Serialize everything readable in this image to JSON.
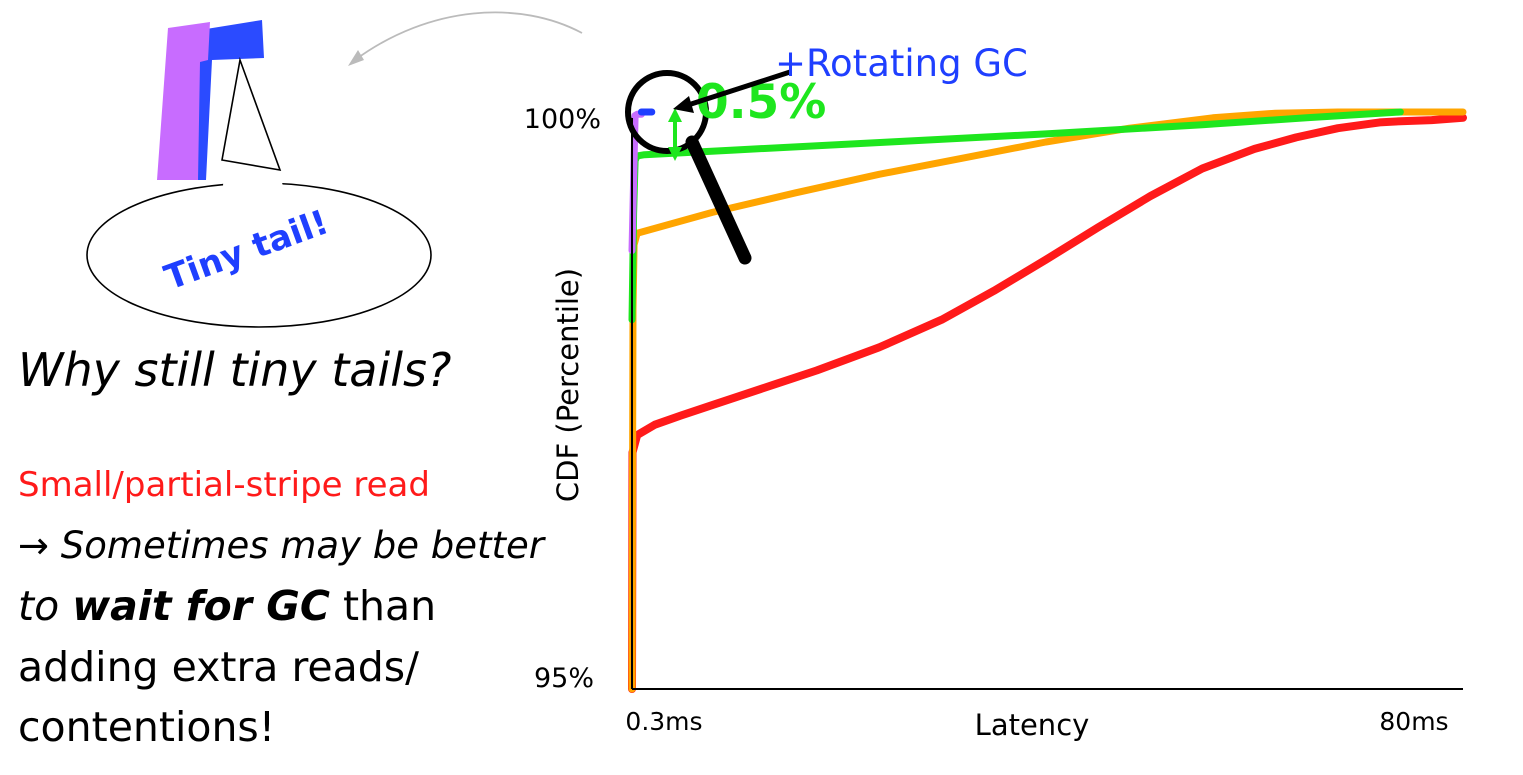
{
  "sidebar": {
    "callout_text": "Tiny tail!",
    "question": "Why still tiny tails?",
    "point_red": "Small/partial-stripe read",
    "arrow_symbol": "→",
    "line1_italic": "Sometimes",
    "line1_rest": "may be better",
    "line2_to": "to",
    "line2_bold": "wait for GC",
    "line2_rest": "than",
    "line3": "adding extra reads/",
    "line4": "contentions!"
  },
  "chart_data": {
    "type": "line",
    "xlabel": "Latency",
    "ylabel": "CDF (Percentile)",
    "x_tick_labels": [
      "0.3ms",
      "80ms"
    ],
    "y_tick_labels": [
      "95%",
      "100%"
    ],
    "x_unit": "ms",
    "y_unit": "percentile",
    "xlim": [
      0.3,
      80
    ],
    "ylim": [
      95,
      100
    ],
    "annotations": {
      "series_label": "+Rotating GC",
      "gap_label": "0.5%"
    },
    "colors": {
      "red": "#ff1a1a",
      "orange": "#ffa500",
      "green": "#1ee61e",
      "purple": "#c86cff",
      "blue": "#1f3fff"
    },
    "series": [
      {
        "color_key": "red",
        "x": [
          0.3,
          0.35,
          0.8,
          2.5,
          5,
          8,
          11,
          14,
          18,
          24,
          30,
          35,
          40,
          45,
          50,
          55,
          60,
          64,
          68,
          72,
          74,
          77,
          80
        ],
        "y": [
          95.0,
          97.05,
          97.2,
          97.29,
          97.37,
          97.46,
          97.55,
          97.64,
          97.76,
          97.96,
          98.2,
          98.45,
          98.72,
          99.0,
          99.27,
          99.51,
          99.68,
          99.78,
          99.86,
          99.91,
          99.92,
          99.93,
          99.95
        ]
      },
      {
        "color_key": "orange",
        "x": [
          0.3,
          0.4,
          0.5,
          0.8,
          8,
          16,
          24,
          32,
          40,
          48,
          56,
          62,
          68,
          72,
          74,
          76,
          78,
          80
        ],
        "y": [
          95.0,
          98.3,
          98.85,
          98.95,
          99.13,
          99.3,
          99.46,
          99.6,
          99.74,
          99.86,
          99.95,
          99.99,
          100.0,
          100.0,
          100.0,
          100.0,
          100.0,
          100.0
        ]
      },
      {
        "color_key": "green",
        "x": [
          0.3,
          0.45,
          0.6,
          0.8,
          1.5,
          10,
          25,
          40,
          55,
          65,
          74
        ],
        "y": [
          98.2,
          99.12,
          99.58,
          99.62,
          99.63,
          99.67,
          99.74,
          99.81,
          99.89,
          99.95,
          100.0
        ]
      },
      {
        "color_key": "purple",
        "x": [
          0.3,
          0.6,
          0.8,
          1.2
        ],
        "y": [
          98.8,
          99.97,
          99.98,
          99.98
        ]
      },
      {
        "color_key": "blue",
        "x": [
          1.2,
          2.2
        ],
        "y": [
          100.0,
          100.0
        ]
      }
    ]
  }
}
